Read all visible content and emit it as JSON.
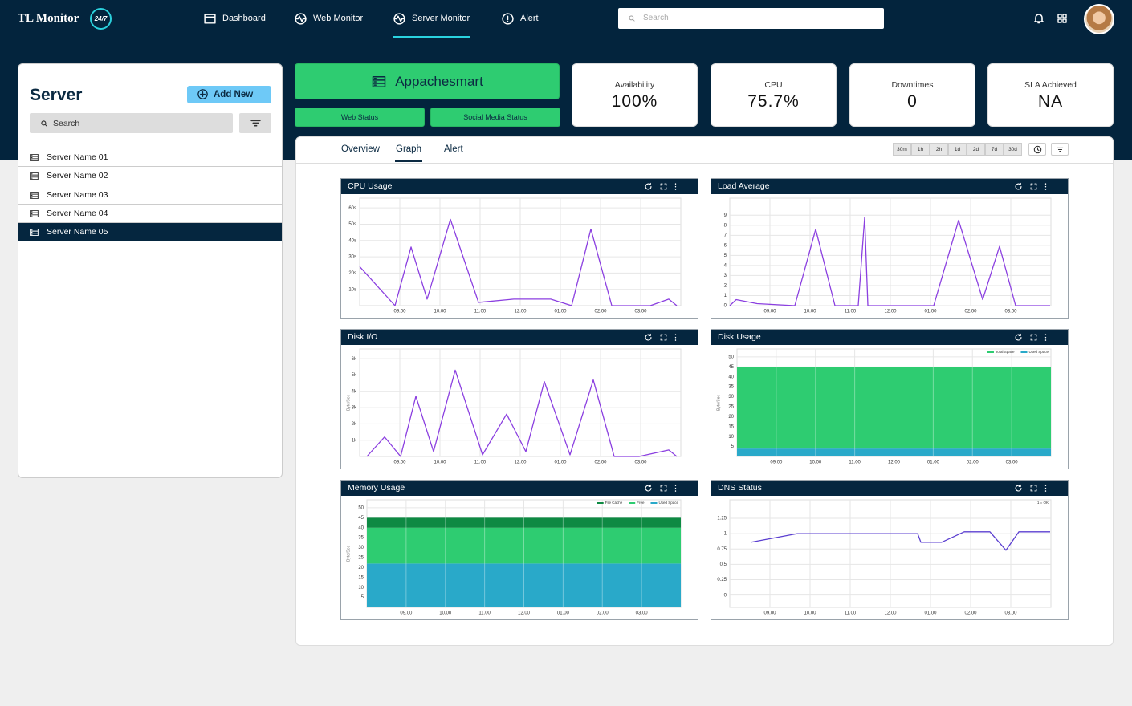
{
  "header": {
    "logo": "TL Monitor",
    "logo_badge": "24/7",
    "nav": [
      "Dashboard",
      "Web Monitor",
      "Server Monitor",
      "Alert"
    ],
    "active_nav": 2,
    "search_placeholder": "Search"
  },
  "sidebar": {
    "title": "Server",
    "add_button": "Add New",
    "search_placeholder": "Search",
    "servers": [
      "Server Name 01",
      "Server Name 02",
      "Server Name 03",
      "Server Name 04",
      "Server Name 05"
    ],
    "selected": 4
  },
  "app": {
    "name": "Appachesmart",
    "buttons": [
      "Web Status",
      "Social Media Status"
    ]
  },
  "stats": [
    {
      "label": "Availability",
      "value": "100%"
    },
    {
      "label": "CPU",
      "value": "75.7%"
    },
    {
      "label": "Downtimes",
      "value": "0"
    },
    {
      "label": "SLA Achieved",
      "value": "NA"
    }
  ],
  "tabs": [
    "Overview",
    "Graph",
    "Alert"
  ],
  "active_tab": 1,
  "ranges": [
    "30m",
    "1h",
    "2h",
    "1d",
    "2d",
    "7d",
    "30d"
  ],
  "chart_data": [
    {
      "type": "line",
      "title": "CPU Usage",
      "color": "#8b3fe0",
      "x": [
        0,
        0.88,
        1.28,
        1.68,
        2.26,
        2.96,
        3.84,
        4.76,
        5.28,
        5.76,
        6.28,
        7.24,
        7.7,
        7.9
      ],
      "values": [
        24,
        0,
        36,
        4,
        53,
        2,
        4,
        4,
        0,
        47,
        0,
        0,
        4,
        0
      ],
      "xlim": [
        0,
        8
      ],
      "xticks": [
        {
          "value": 1,
          "label": "09.00"
        },
        {
          "value": 2,
          "label": "10.00"
        },
        {
          "value": 3,
          "label": "11.00"
        },
        {
          "value": 4,
          "label": "12.00"
        },
        {
          "value": 5,
          "label": "01.00"
        },
        {
          "value": 6,
          "label": "02.00"
        },
        {
          "value": 7,
          "label": "03.00"
        }
      ],
      "ylim": [
        0,
        66
      ],
      "yticks": [
        {
          "value": 10,
          "label": "10s"
        },
        {
          "value": 20,
          "label": "20s"
        },
        {
          "value": 30,
          "label": "30s"
        },
        {
          "value": 40,
          "label": "40s"
        },
        {
          "value": 50,
          "label": "50s"
        },
        {
          "value": 60,
          "label": "60s"
        }
      ],
      "grid": true
    },
    {
      "type": "line",
      "title": "Load Average",
      "color": "#8b3fe0",
      "x": [
        0,
        0.16,
        0.68,
        1.62,
        2.14,
        2.62,
        3.2,
        3.36,
        3.44,
        5.08,
        5.7,
        6.3,
        6.72,
        7.12,
        7.98
      ],
      "values": [
        0,
        0.6,
        0.2,
        0,
        7.6,
        0,
        0,
        8.8,
        0,
        0,
        8.5,
        0.6,
        5.9,
        0,
        0
      ],
      "xlim": [
        0,
        8
      ],
      "xticks": [
        {
          "value": 1,
          "label": "09.00"
        },
        {
          "value": 2,
          "label": "10.00"
        },
        {
          "value": 3,
          "label": "11.00"
        },
        {
          "value": 4,
          "label": "12.00"
        },
        {
          "value": 5,
          "label": "01.00"
        },
        {
          "value": 6,
          "label": "02.00"
        },
        {
          "value": 7,
          "label": "03.00"
        }
      ],
      "ylim": [
        0,
        10.7
      ],
      "yticks": [
        0,
        1,
        2,
        3,
        4,
        5,
        6,
        7,
        8,
        9
      ],
      "grid": true
    },
    {
      "type": "line",
      "title": "Disk I/O",
      "color": "#8b3fe0",
      "ylabel": "Byte/Sec",
      "x": [
        0.18,
        0.62,
        1.02,
        1.4,
        1.84,
        2.38,
        3.06,
        3.66,
        4.14,
        4.6,
        5.24,
        5.82,
        6.34,
        6.96,
        7.7,
        7.9
      ],
      "values": [
        0,
        1200,
        0,
        3700,
        300,
        5300,
        100,
        2600,
        300,
        4600,
        100,
        4700,
        0,
        0,
        400,
        0
      ],
      "xlim": [
        0,
        8
      ],
      "xticks": [
        {
          "value": 1,
          "label": "09.00"
        },
        {
          "value": 2,
          "label": "10.00"
        },
        {
          "value": 3,
          "label": "11.00"
        },
        {
          "value": 4,
          "label": "12.00"
        },
        {
          "value": 5,
          "label": "01.00"
        },
        {
          "value": 6,
          "label": "02.00"
        },
        {
          "value": 7,
          "label": "03.00"
        }
      ],
      "ylim": [
        0,
        6600
      ],
      "yticks": [
        {
          "value": 1000,
          "label": "1k"
        },
        {
          "value": 2000,
          "label": "2k"
        },
        {
          "value": 3000,
          "label": "3k"
        },
        {
          "value": 4000,
          "label": "4k"
        },
        {
          "value": 5000,
          "label": "5k"
        },
        {
          "value": 6000,
          "label": "6k"
        }
      ],
      "grid": true
    },
    {
      "type": "area",
      "title": "Disk Usage",
      "ylabel": "Byte/Sec",
      "stacked": true,
      "legend": "top-right",
      "x": [
        0,
        8
      ],
      "series": [
        {
          "name": "Used Space",
          "color": "#29a9c9",
          "values": [
            4,
            4
          ]
        },
        {
          "name": "Total Space",
          "color": "#2ecc71",
          "values": [
            41,
            41
          ]
        }
      ],
      "xlim": [
        0,
        8
      ],
      "xticks": [
        {
          "value": 1,
          "label": "09.00"
        },
        {
          "value": 2,
          "label": "10.00"
        },
        {
          "value": 3,
          "label": "11.00"
        },
        {
          "value": 4,
          "label": "12.00"
        },
        {
          "value": 5,
          "label": "01.00"
        },
        {
          "value": 6,
          "label": "02.00"
        },
        {
          "value": 7,
          "label": "03.00"
        }
      ],
      "ylim": [
        0,
        54
      ],
      "yticks": [
        5,
        10,
        15,
        20,
        25,
        30,
        35,
        40,
        45,
        50
      ],
      "grid": true
    },
    {
      "type": "area",
      "title": "Memory Usage",
      "ylabel": "Byte/Sec",
      "stacked": true,
      "legend": "top-right",
      "x": [
        0,
        8
      ],
      "series": [
        {
          "name": "Used Space",
          "color": "#29a9c9",
          "values": [
            22,
            22
          ]
        },
        {
          "name": "Free",
          "color": "#2ecc71",
          "values": [
            18,
            18
          ]
        },
        {
          "name": "File Cache",
          "color": "#0e8a43",
          "values": [
            5,
            5
          ]
        }
      ],
      "xlim": [
        0,
        8
      ],
      "xticks": [
        {
          "value": 1,
          "label": "09.00"
        },
        {
          "value": 2,
          "label": "10.00"
        },
        {
          "value": 3,
          "label": "11.00"
        },
        {
          "value": 4,
          "label": "12.00"
        },
        {
          "value": 5,
          "label": "01.00"
        },
        {
          "value": 6,
          "label": "02.00"
        },
        {
          "value": 7,
          "label": "03.00"
        }
      ],
      "ylim": [
        0,
        54
      ],
      "yticks": [
        5,
        10,
        15,
        20,
        25,
        30,
        35,
        40,
        45,
        50
      ],
      "grid": true
    },
    {
      "type": "line",
      "title": "DNS Status",
      "color": "#5b3fd0",
      "annotation": "1 = OK",
      "x": [
        0.52,
        1.68,
        4.68,
        4.76,
        5.28,
        5.84,
        6.48,
        6.88,
        7.2,
        7.98
      ],
      "values": [
        0.86,
        1,
        1,
        0.86,
        0.86,
        1.03,
        1.03,
        0.73,
        1.03,
        1.03
      ],
      "xlim": [
        0,
        8
      ],
      "xticks": [
        {
          "value": 1,
          "label": "09.00"
        },
        {
          "value": 2,
          "label": "10.00"
        },
        {
          "value": 3,
          "label": "11.00"
        },
        {
          "value": 4,
          "label": "12.00"
        },
        {
          "value": 5,
          "label": "01.00"
        },
        {
          "value": 6,
          "label": "02.00"
        },
        {
          "value": 7,
          "label": "03.00"
        }
      ],
      "ylim": [
        -0.2,
        1.55
      ],
      "yticks": [
        0,
        0.25,
        0.5,
        0.75,
        1,
        1.25
      ],
      "grid": true
    }
  ]
}
